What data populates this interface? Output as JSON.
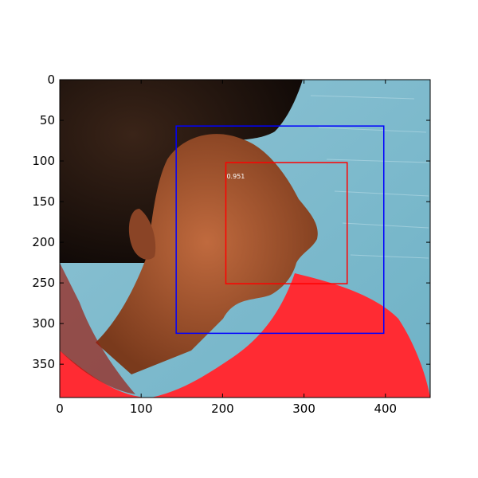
{
  "chart_data": {
    "type": "image-with-detections",
    "image": {
      "width": 455,
      "height": 391,
      "description": "Photograph of a young woman in profile facing right, dark hair pulled back, red shirt, blue water in the background"
    },
    "x_ticks": [
      0,
      100,
      200,
      300,
      400
    ],
    "y_ticks": [
      0,
      50,
      100,
      150,
      200,
      250,
      300,
      350
    ],
    "xlim": [
      0,
      455
    ],
    "ylim": [
      391,
      0
    ],
    "boxes": [
      {
        "name": "outer-box",
        "x1": 143,
        "y1": 57,
        "x2": 398,
        "y2": 312,
        "color": "#0000ff",
        "label": ""
      },
      {
        "name": "face-box",
        "x1": 204,
        "y1": 102,
        "x2": 353,
        "y2": 251,
        "color": "#ff0000",
        "label": "0.951"
      }
    ]
  }
}
